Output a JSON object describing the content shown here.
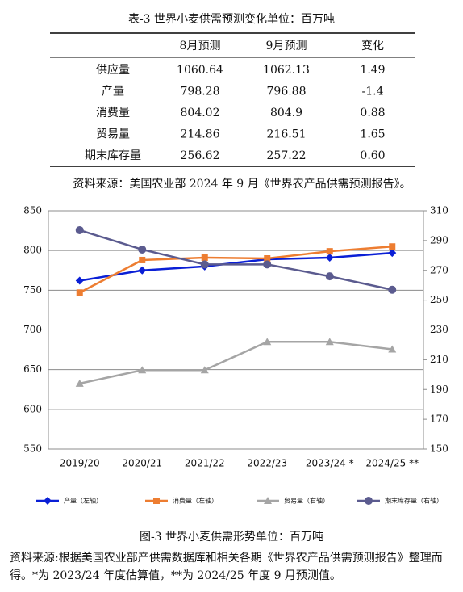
{
  "table": {
    "title": "表-3 世界小麦供需预测变化单位：百万吨",
    "header": [
      "8月预测",
      "9月预测",
      "变化"
    ],
    "rows": [
      [
        "供应量",
        "1060.64",
        "1062.13",
        "1.49"
      ],
      [
        "产量",
        "798.28",
        "796.88",
        "-1.4"
      ],
      [
        "消费量",
        "804.02",
        "804.9",
        "0.88"
      ],
      [
        "贸易量",
        "214.86",
        "216.51",
        "1.65"
      ],
      [
        "期末库存量",
        "256.62",
        "257.22",
        "0.60"
      ]
    ]
  },
  "table_source": "资料来源：美国农业部 2024 年 9 月《世界农产品供需预测报告》。",
  "chart_data": {
    "type": "line",
    "categories": [
      "2019/20",
      "2020/21",
      "2021/22",
      "2022/23",
      "2023/24 *",
      "2024/25 **"
    ],
    "ylim": [
      550,
      850
    ],
    "yticks": [
      550,
      600,
      650,
      700,
      750,
      800,
      850
    ],
    "y2lim": [
      150,
      310
    ],
    "y2ticks": [
      150,
      170,
      190,
      210,
      230,
      250,
      270,
      290,
      310
    ],
    "grid": true,
    "series": [
      {
        "name": "产量（左轴）",
        "color": "#0a1fd6",
        "marker": "diamond",
        "values": [
          762,
          775,
          780,
          789,
          791,
          797
        ]
      },
      {
        "name": "消费量（左轴）",
        "color": "#ed7d31",
        "marker": "square",
        "values": [
          747,
          788,
          791,
          790,
          799,
          805
        ]
      },
      {
        "name": "贸易量（右轴）",
        "color": "#a5a5a5",
        "marker": "triangle",
        "axis": "y2",
        "values": [
          194,
          203,
          203,
          222,
          222,
          217
        ]
      },
      {
        "name": "期末库存量（右轴）",
        "color": "#5b5b8f",
        "marker": "circle",
        "axis": "y2",
        "values": [
          297,
          284,
          274,
          274,
          266,
          257
        ]
      }
    ]
  },
  "figure_caption": "图-3 世界小麦供需形势单位：百万吨",
  "figure_note": "资料来源:根据美国农业部产供需数据库和相关各期《世界农产品供需预测报告》整理而得。*为 2023/24 年度估算值，**为 2024/25 年度 9 月预测值。"
}
